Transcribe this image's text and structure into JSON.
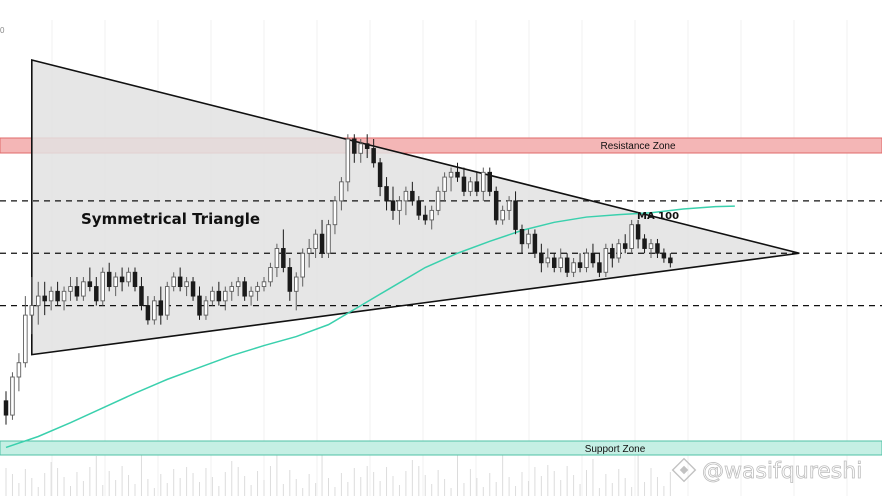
{
  "chart_data": {
    "type": "candlestick",
    "title": "",
    "annotations": {
      "pattern": "Symmetrical Triangle",
      "resistance": "Resistance Zone",
      "support": "Support Zone",
      "ma": "MA 100",
      "watermark": "@wasifqureshi"
    },
    "y_range": [
      0,
      100
    ],
    "zones": {
      "resistance": [
        72.9,
        76.4
      ],
      "support": [
        9.1,
        12.4
      ]
    },
    "dashed_levels": [
      62.0,
      51.0,
      40.0
    ],
    "triangle": {
      "upper": [
        [
          4,
          91.6
        ],
        [
          123,
          51.0
        ]
      ],
      "lower": [
        [
          4,
          29.7
        ],
        [
          123,
          51.0
        ]
      ],
      "base": [
        [
          4,
          29.7
        ],
        [
          4,
          91.6
        ]
      ]
    },
    "ma100": [
      [
        0,
        10.2
      ],
      [
        5,
        12.5
      ],
      [
        10,
        15.4
      ],
      [
        15,
        18.5
      ],
      [
        20,
        21.6
      ],
      [
        25,
        24.5
      ],
      [
        30,
        27.0
      ],
      [
        35,
        29.5
      ],
      [
        40,
        31.6
      ],
      [
        45,
        33.5
      ],
      [
        50,
        36.0
      ],
      [
        55,
        40.0
      ],
      [
        60,
        44.0
      ],
      [
        65,
        48.0
      ],
      [
        70,
        51.0
      ],
      [
        75,
        53.5
      ],
      [
        80,
        55.8
      ],
      [
        85,
        57.5
      ],
      [
        90,
        58.6
      ],
      [
        95,
        59.1
      ],
      [
        100,
        59.5
      ],
      [
        105,
        60.3
      ],
      [
        110,
        60.8
      ],
      [
        113,
        60.9
      ]
    ],
    "candles": [
      [
        20,
        22,
        15,
        17
      ],
      [
        17,
        26,
        16,
        25
      ],
      [
        25,
        30,
        22,
        28
      ],
      [
        28,
        42,
        27,
        38
      ],
      [
        38,
        46,
        34,
        40
      ],
      [
        40,
        45,
        36,
        42
      ],
      [
        42,
        45,
        38,
        41
      ],
      [
        41,
        44,
        39,
        43
      ],
      [
        43,
        45,
        40,
        41
      ],
      [
        41,
        44,
        39,
        43
      ],
      [
        43,
        46,
        41,
        44
      ],
      [
        44,
        46,
        41,
        42
      ],
      [
        42,
        46,
        41,
        45
      ],
      [
        45,
        48,
        43,
        44
      ],
      [
        44,
        46,
        40,
        41
      ],
      [
        41,
        48,
        40,
        47
      ],
      [
        47,
        49,
        43,
        44
      ],
      [
        44,
        47,
        42,
        46
      ],
      [
        46,
        48,
        43,
        45
      ],
      [
        45,
        48,
        44,
        47
      ],
      [
        47,
        48,
        43,
        44
      ],
      [
        44,
        46,
        39,
        40
      ],
      [
        40,
        42,
        36,
        37
      ],
      [
        37,
        42,
        36,
        41
      ],
      [
        41,
        44,
        36,
        38
      ],
      [
        38,
        45,
        37,
        44
      ],
      [
        44,
        47,
        43,
        46
      ],
      [
        46,
        48,
        43,
        44
      ],
      [
        44,
        46,
        42,
        45
      ],
      [
        45,
        46,
        41,
        42
      ],
      [
        42,
        44,
        37,
        38
      ],
      [
        38,
        42,
        37,
        41
      ],
      [
        41,
        44,
        40,
        43
      ],
      [
        43,
        45,
        40,
        41
      ],
      [
        41,
        44,
        39,
        43
      ],
      [
        43,
        45,
        41,
        44
      ],
      [
        44,
        46,
        42,
        45
      ],
      [
        45,
        46,
        41,
        42
      ],
      [
        42,
        44,
        40,
        43
      ],
      [
        43,
        45,
        41,
        44
      ],
      [
        44,
        46,
        43,
        45
      ],
      [
        45,
        49,
        44,
        48
      ],
      [
        48,
        53,
        46,
        52
      ],
      [
        52,
        56,
        47,
        48
      ],
      [
        48,
        50,
        41,
        43
      ],
      [
        43,
        47,
        39,
        46
      ],
      [
        46,
        52,
        44,
        51
      ],
      [
        51,
        54,
        48,
        52
      ],
      [
        52,
        56,
        50,
        55
      ],
      [
        55,
        58,
        50,
        51
      ],
      [
        51,
        58,
        50,
        57
      ],
      [
        57,
        63,
        55,
        62
      ],
      [
        62,
        67,
        60,
        66
      ],
      [
        66,
        76,
        64,
        75
      ],
      [
        75,
        76,
        70,
        72
      ],
      [
        72,
        75,
        70,
        74
      ],
      [
        74,
        76,
        71,
        73
      ],
      [
        73,
        75,
        69,
        70
      ],
      [
        70,
        71,
        63,
        65
      ],
      [
        65,
        67,
        60,
        62
      ],
      [
        62,
        65,
        58,
        60
      ],
      [
        60,
        63,
        57,
        62
      ],
      [
        62,
        65,
        59,
        64
      ],
      [
        64,
        66,
        61,
        62
      ],
      [
        62,
        63,
        58,
        59
      ],
      [
        59,
        61,
        57,
        58
      ],
      [
        58,
        61,
        56,
        60
      ],
      [
        60,
        65,
        59,
        64
      ],
      [
        64,
        68,
        62,
        67
      ],
      [
        67,
        69,
        64,
        68
      ],
      [
        68,
        70,
        66,
        67
      ],
      [
        67,
        69,
        63,
        64
      ],
      [
        64,
        67,
        63,
        66
      ],
      [
        66,
        68,
        63,
        64
      ],
      [
        64,
        69,
        62,
        68
      ],
      [
        68,
        69,
        63,
        64
      ],
      [
        64,
        65,
        57,
        58
      ],
      [
        58,
        61,
        57,
        60
      ],
      [
        60,
        63,
        58,
        62
      ],
      [
        62,
        64,
        55,
        56
      ],
      [
        56,
        57,
        51,
        53
      ],
      [
        53,
        56,
        52,
        55
      ],
      [
        55,
        56,
        50,
        51
      ],
      [
        51,
        53,
        47,
        49
      ],
      [
        49,
        52,
        48,
        50
      ],
      [
        50,
        51,
        47,
        48
      ],
      [
        48,
        52,
        47,
        50
      ],
      [
        50,
        51,
        46,
        47
      ],
      [
        47,
        50,
        46,
        49
      ],
      [
        49,
        51,
        47,
        48
      ],
      [
        48,
        52,
        47,
        51
      ],
      [
        51,
        53,
        48,
        49
      ],
      [
        49,
        51,
        46,
        47
      ],
      [
        47,
        53,
        46,
        52
      ],
      [
        52,
        53,
        48,
        50
      ],
      [
        50,
        54,
        49,
        53
      ],
      [
        53,
        55,
        51,
        52
      ],
      [
        52,
        58,
        51,
        57
      ],
      [
        57,
        58,
        52,
        54
      ],
      [
        54,
        55,
        51,
        52
      ],
      [
        52,
        54,
        50,
        53
      ],
      [
        53,
        54,
        50,
        51
      ],
      [
        51,
        52,
        49,
        50
      ],
      [
        50,
        51,
        48,
        49
      ]
    ]
  }
}
